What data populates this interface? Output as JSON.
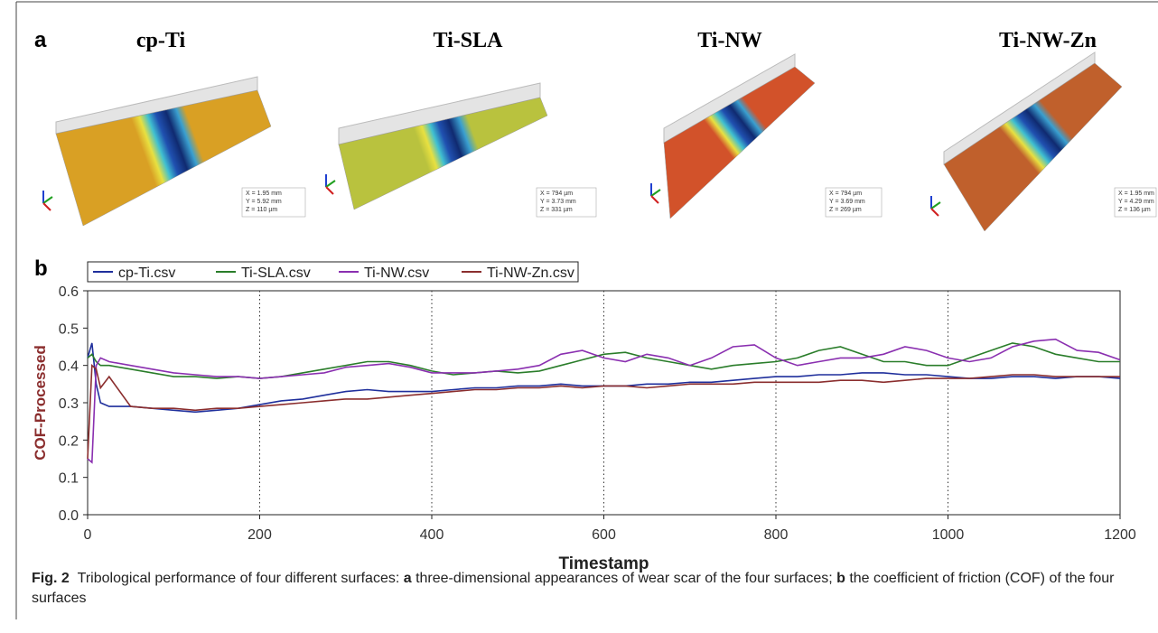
{
  "figure": {
    "panel_a": {
      "label": "a",
      "panels": [
        {
          "title": "cp-Ti",
          "info": [
            "X = 1.95 mm",
            "Y = 5.92 mm",
            "Z = 110 µm"
          ]
        },
        {
          "title": "Ti-SLA",
          "info": [
            "X = 794 µm",
            "Y = 3.73 mm",
            "Z = 331 µm"
          ]
        },
        {
          "title": "Ti-NW",
          "info": [
            "X = 794 µm",
            "Y = 3.69 mm",
            "Z = 269 µm"
          ]
        },
        {
          "title": "Ti-NW-Zn",
          "info": [
            "X = 1.95 mm",
            "Y = 4.29 mm",
            "Z = 136 µm"
          ]
        }
      ]
    },
    "panel_b": {
      "label": "b"
    },
    "caption": [
      "Fig. 2",
      "Tribological performance of four different surfaces: ",
      "a",
      " three-dimensional appearances of wear scar of the four surfaces; ",
      "b",
      " the coefficient of friction (COF) of the four surfaces"
    ]
  },
  "chart_data": {
    "type": "line",
    "x_label": "Timestamp",
    "y_label": "COF-Processed",
    "x": [
      0,
      5,
      10,
      15,
      25,
      50,
      75,
      100,
      125,
      150,
      175,
      200,
      225,
      250,
      275,
      300,
      325,
      350,
      375,
      400,
      425,
      450,
      475,
      500,
      525,
      550,
      575,
      600,
      625,
      650,
      675,
      700,
      725,
      750,
      775,
      800,
      825,
      850,
      875,
      900,
      925,
      950,
      975,
      1000,
      1025,
      1050,
      1075,
      1100,
      1125,
      1150,
      1175,
      1200
    ],
    "series": [
      {
        "name": "cp-Ti.csv",
        "color": "#1f2f9c",
        "values": [
          0.42,
          0.46,
          0.35,
          0.3,
          0.29,
          0.29,
          0.285,
          0.28,
          0.275,
          0.28,
          0.285,
          0.295,
          0.305,
          0.31,
          0.32,
          0.33,
          0.335,
          0.33,
          0.33,
          0.33,
          0.335,
          0.34,
          0.34,
          0.345,
          0.345,
          0.35,
          0.345,
          0.345,
          0.345,
          0.35,
          0.35,
          0.355,
          0.355,
          0.36,
          0.365,
          0.37,
          0.37,
          0.375,
          0.375,
          0.38,
          0.38,
          0.375,
          0.375,
          0.37,
          0.365,
          0.365,
          0.37,
          0.37,
          0.365,
          0.37,
          0.37,
          0.365
        ]
      },
      {
        "name": "Ti-SLA.csv",
        "color": "#2a7d2a",
        "values": [
          0.42,
          0.43,
          0.41,
          0.4,
          0.4,
          0.39,
          0.38,
          0.37,
          0.37,
          0.365,
          0.37,
          0.365,
          0.37,
          0.38,
          0.39,
          0.4,
          0.41,
          0.41,
          0.4,
          0.385,
          0.375,
          0.38,
          0.385,
          0.38,
          0.385,
          0.4,
          0.415,
          0.43,
          0.435,
          0.42,
          0.41,
          0.4,
          0.39,
          0.4,
          0.405,
          0.41,
          0.42,
          0.44,
          0.45,
          0.43,
          0.41,
          0.41,
          0.4,
          0.4,
          0.42,
          0.44,
          0.46,
          0.45,
          0.43,
          0.42,
          0.41,
          0.41
        ]
      },
      {
        "name": "Ti-NW.csv",
        "color": "#8a2fb0",
        "values": [
          0.15,
          0.14,
          0.4,
          0.42,
          0.41,
          0.4,
          0.39,
          0.38,
          0.375,
          0.37,
          0.37,
          0.365,
          0.37,
          0.375,
          0.38,
          0.395,
          0.4,
          0.405,
          0.395,
          0.38,
          0.38,
          0.38,
          0.385,
          0.39,
          0.4,
          0.43,
          0.44,
          0.42,
          0.41,
          0.43,
          0.42,
          0.4,
          0.42,
          0.45,
          0.455,
          0.42,
          0.4,
          0.41,
          0.42,
          0.42,
          0.43,
          0.45,
          0.44,
          0.42,
          0.41,
          0.42,
          0.45,
          0.465,
          0.47,
          0.44,
          0.435,
          0.415
        ]
      },
      {
        "name": "Ti-NW-Zn.csv",
        "color": "#8b2e2e",
        "values": [
          0.15,
          0.4,
          0.39,
          0.34,
          0.37,
          0.29,
          0.285,
          0.285,
          0.28,
          0.285,
          0.285,
          0.29,
          0.295,
          0.3,
          0.305,
          0.31,
          0.31,
          0.315,
          0.32,
          0.325,
          0.33,
          0.335,
          0.335,
          0.34,
          0.34,
          0.345,
          0.34,
          0.345,
          0.345,
          0.34,
          0.345,
          0.35,
          0.35,
          0.35,
          0.355,
          0.355,
          0.355,
          0.355,
          0.36,
          0.36,
          0.355,
          0.36,
          0.365,
          0.365,
          0.365,
          0.37,
          0.375,
          0.375,
          0.37,
          0.37,
          0.37,
          0.37
        ]
      }
    ],
    "xlim": [
      0,
      1200
    ],
    "xticks": [
      0,
      200,
      400,
      600,
      800,
      1000,
      1200
    ],
    "ylim": [
      0,
      0.6
    ],
    "yticks": [
      {
        "value": 0,
        "label": "0.0"
      },
      0.1,
      0.2,
      0.3,
      0.4,
      0.5,
      0.6
    ],
    "grid": true,
    "legend": "top"
  }
}
